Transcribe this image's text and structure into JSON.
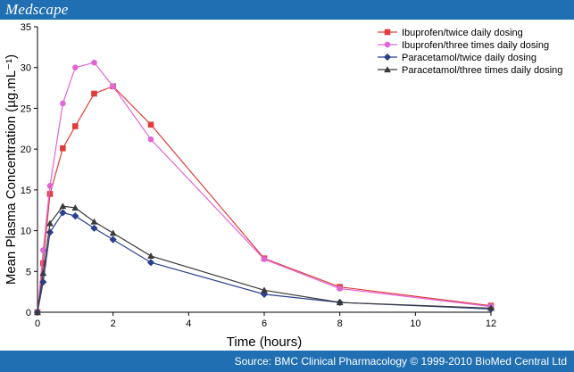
{
  "header": {
    "brand": "Medscape"
  },
  "footer": {
    "source": "Source: BMC Clinical Pharmacology © 1999-2010 BioMed Central Ltd"
  },
  "chart_data": {
    "type": "line",
    "xlabel": "Time (hours)",
    "ylabel": "Mean Plasma Concentration (µg.mL⁻¹)",
    "xlim": [
      0,
      12
    ],
    "ylim": [
      0,
      35
    ],
    "xticks": [
      0,
      2,
      4,
      6,
      8,
      10,
      12
    ],
    "yticks": [
      0,
      5,
      10,
      15,
      20,
      25,
      30,
      35
    ],
    "grid": false,
    "legend_position": "top-right",
    "series": [
      {
        "name": "Ibuprofen/twice daily dosing",
        "color": "#e03c3c",
        "marker": "square",
        "x": [
          0,
          0.15,
          0.33,
          0.67,
          1,
          1.5,
          2,
          3,
          6,
          8,
          12
        ],
        "y": [
          0,
          6.0,
          14.5,
          20.1,
          22.8,
          26.8,
          27.7,
          23.0,
          6.6,
          3.1,
          0.8
        ]
      },
      {
        "name": "Ibuprofen/three times daily dosing",
        "color": "#e066d6",
        "marker": "circle",
        "x": [
          0,
          0.15,
          0.33,
          0.67,
          1,
          1.5,
          2,
          3,
          6,
          8,
          12
        ],
        "y": [
          0,
          7.6,
          15.5,
          25.6,
          30.0,
          30.6,
          27.7,
          21.2,
          6.5,
          2.9,
          0.7
        ]
      },
      {
        "name": "Paracetamol/twice daily dosing",
        "color": "#2b3f8f",
        "marker": "diamond",
        "x": [
          0,
          0.15,
          0.33,
          0.67,
          1,
          1.5,
          2,
          3,
          6,
          8,
          12
        ],
        "y": [
          0,
          3.7,
          9.8,
          12.2,
          11.8,
          10.3,
          8.9,
          6.1,
          2.2,
          1.2,
          0.4
        ]
      },
      {
        "name": "Paracetamol/three times daily dosing",
        "color": "#3a3a3a",
        "marker": "triangle",
        "x": [
          0,
          0.15,
          0.33,
          0.67,
          1,
          1.5,
          2,
          3,
          6,
          8,
          12
        ],
        "y": [
          0,
          4.8,
          10.9,
          13.0,
          12.8,
          11.1,
          9.7,
          6.9,
          2.7,
          1.2,
          0.5
        ]
      }
    ]
  }
}
